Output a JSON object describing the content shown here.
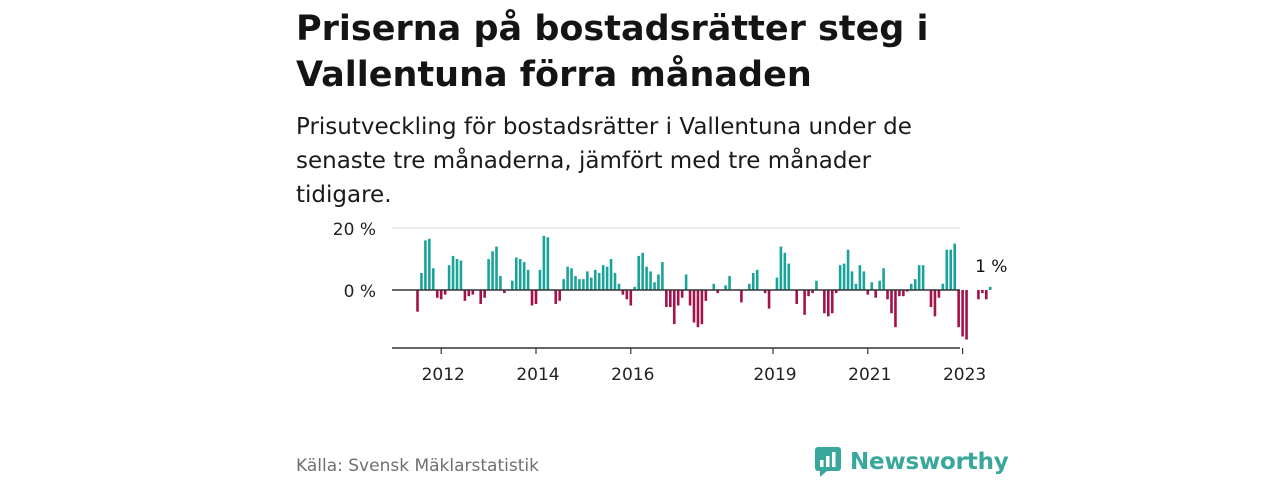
{
  "header": {
    "title": "Priserna på bostadsrätter steg i Vallentuna förra månaden",
    "subtitle": "Prisutveckling för bostadsrätter i Vallentuna under de senaste tre månaderna, jämfört med tre månader tidigare."
  },
  "footer": {
    "source": "Källa: Svensk Mäklarstatistik",
    "brand": "Newsworthy"
  },
  "colors": {
    "positive": "#1aa399",
    "negative": "#a3124a",
    "brand": "#39a79c"
  },
  "chart_data": {
    "type": "bar",
    "title": "Priserna på bostadsrätter steg i Vallentuna förra månaden",
    "xlabel": "",
    "ylabel": "",
    "ylim": [
      -18,
      22
    ],
    "grid": true,
    "y_ticks": [
      {
        "value": 0,
        "label": "0 %"
      },
      {
        "value": 20,
        "label": "20 %"
      }
    ],
    "x_ticks": [
      {
        "index": 6,
        "label": "2012"
      },
      {
        "index": 30,
        "label": "2014"
      },
      {
        "index": 54,
        "label": "2016"
      },
      {
        "index": 90,
        "label": "2019"
      },
      {
        "index": 114,
        "label": "2021"
      },
      {
        "index": 138,
        "label": "2023"
      }
    ],
    "last_label": "1 %",
    "start": "2011-07",
    "values": [
      -7,
      5.5,
      16,
      16.5,
      7,
      -2.5,
      -3,
      -1.5,
      8,
      11,
      10,
      9.5,
      -3.5,
      -2,
      -1.5,
      0,
      -4.5,
      -2.5,
      10,
      12.5,
      14,
      4.5,
      -1,
      0,
      3,
      10.5,
      10,
      9,
      6.5,
      -5,
      -4.5,
      6.5,
      17.5,
      17,
      0,
      -4.5,
      -3.5,
      3.5,
      7.5,
      7,
      4.5,
      3.5,
      3.5,
      6,
      4,
      6.5,
      5.5,
      8,
      7.5,
      10,
      5.5,
      2,
      -1.5,
      -3,
      -5,
      1,
      11,
      12,
      7.5,
      6,
      2.5,
      5,
      9,
      -5.5,
      -5.5,
      -11,
      -5,
      -2.5,
      5,
      -5,
      -10.5,
      -12,
      -11,
      -3.5,
      0,
      2,
      -1,
      0,
      1.5,
      4.5,
      0,
      0,
      -4,
      0,
      2,
      5.5,
      6.5,
      0,
      -1,
      -6,
      0,
      4,
      14,
      12,
      8.5,
      0,
      -4.5,
      0,
      -8,
      -2,
      -1,
      3,
      0,
      -7.5,
      -8.5,
      -7.5,
      -1,
      8,
      8.5,
      13,
      6,
      2,
      8,
      6,
      -1.5,
      2.5,
      -2.5,
      3,
      7,
      -3,
      -7.5,
      -12,
      -2,
      -2,
      -0.5,
      2,
      3.5,
      8,
      8,
      0,
      -5.5,
      -8.5,
      -2.5,
      2,
      13,
      13,
      15,
      -12,
      -15,
      -16,
      0,
      0,
      -3,
      -1,
      -3,
      1
    ]
  }
}
